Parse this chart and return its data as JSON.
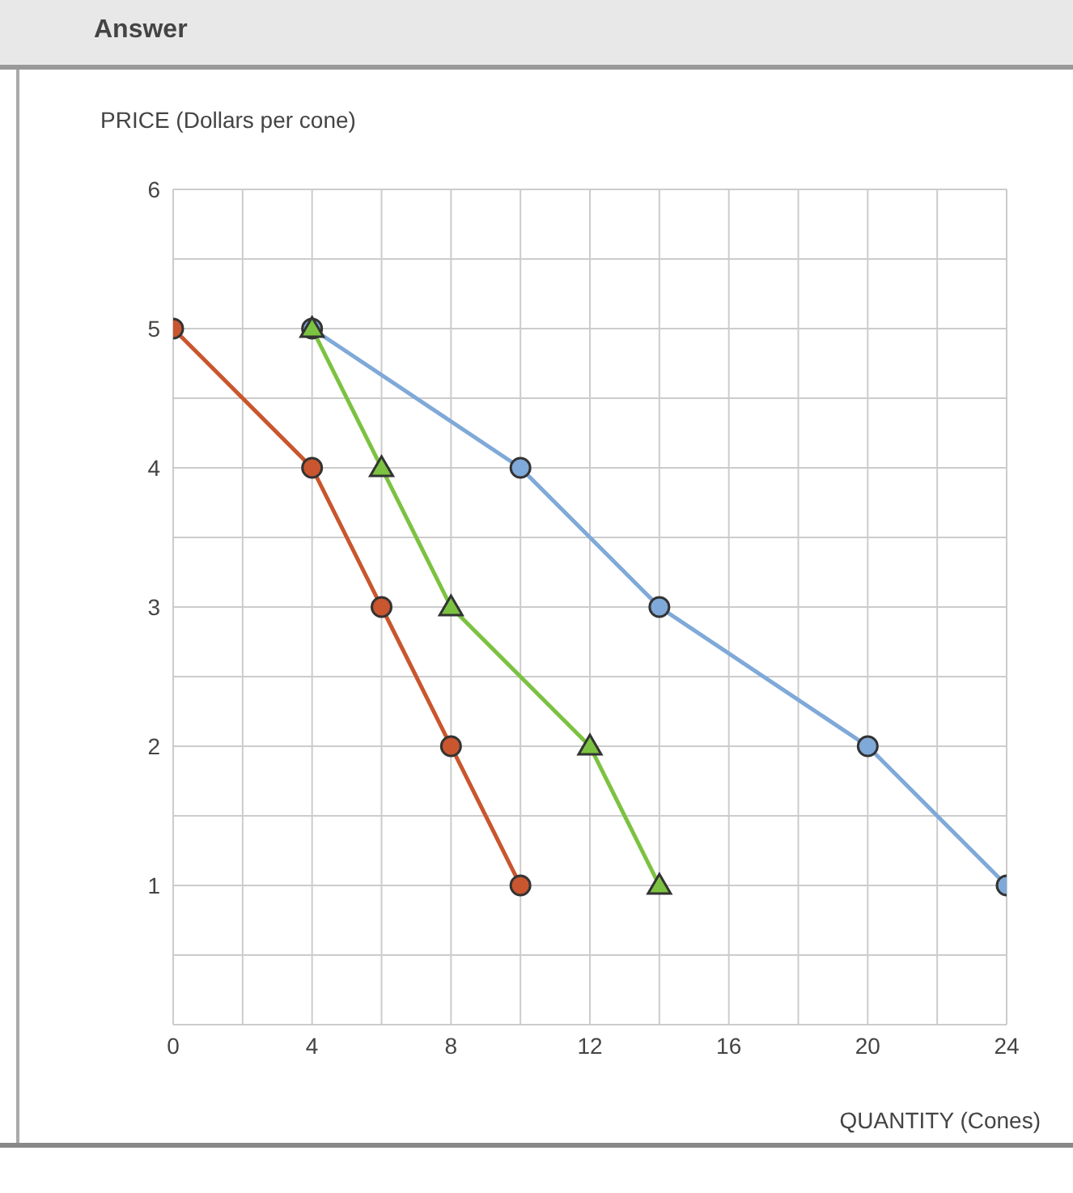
{
  "chart_data": {
    "type": "line",
    "title": "Answer",
    "ylabel": "PRICE (Dollars per cone)",
    "xlabel": "QUANTITY (Cones)",
    "xlim": [
      0,
      24
    ],
    "ylim": [
      0,
      6
    ],
    "xticks": [
      0,
      {
        "value": 2,
        "label": null
      },
      4,
      {
        "value": 6,
        "label": null
      },
      8,
      {
        "value": 10,
        "label": null
      },
      12,
      {
        "value": 14,
        "label": null
      },
      16,
      {
        "value": 18,
        "label": null
      },
      20,
      {
        "value": 22,
        "label": null
      },
      24
    ],
    "yticks": [
      {
        "value": 0,
        "label": null
      },
      {
        "value": 0.5,
        "label": null
      },
      1,
      {
        "value": 1.5,
        "label": null
      },
      2,
      {
        "value": 2.5,
        "label": null
      },
      3,
      {
        "value": 3.5,
        "label": null
      },
      4,
      {
        "value": 4.5,
        "label": null
      },
      5,
      {
        "value": 5.5,
        "label": null
      },
      6
    ],
    "grid": true,
    "series": [
      {
        "color": "#c9562e",
        "marker": "circle",
        "x": [
          0,
          4,
          6,
          8,
          10
        ],
        "values": [
          5,
          4,
          3,
          2,
          1
        ]
      },
      {
        "color": "#7cc242",
        "marker": "triangle",
        "x": [
          4,
          6,
          8,
          12,
          14
        ],
        "values": [
          5,
          4,
          3,
          2,
          1
        ]
      },
      {
        "color": "#7fa9d8",
        "marker": "circle",
        "x": [
          4,
          10,
          14,
          20,
          24
        ],
        "values": [
          5,
          4,
          3,
          2,
          1
        ]
      }
    ]
  }
}
